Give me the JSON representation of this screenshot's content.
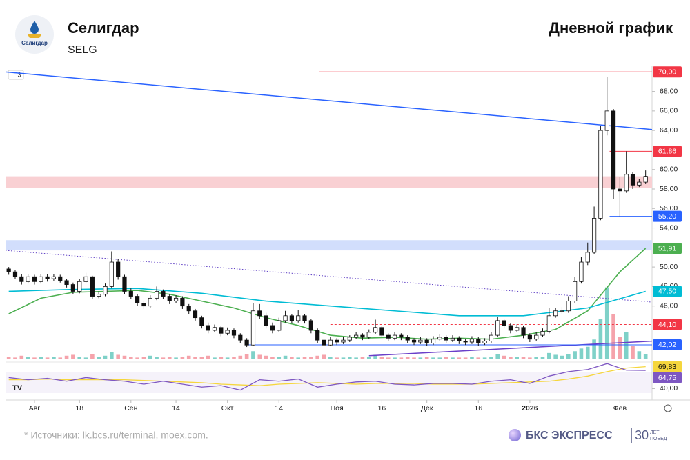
{
  "header": {
    "title": "Селигдар",
    "ticker": "SELG",
    "chart_kind": "Дневной график",
    "logo_text": "Селигдар",
    "badge": "3"
  },
  "chart_data": {
    "type": "candlestick",
    "xlim": [
      -0.5,
      100
    ],
    "ylim": [
      39.4,
      70.8
    ],
    "grid": false,
    "xticks": [
      {
        "value": 4,
        "label": "Авг"
      },
      {
        "value": 11,
        "label": "18"
      },
      {
        "value": 19,
        "label": "Сен"
      },
      {
        "value": 26,
        "label": "14"
      },
      {
        "value": 34,
        "label": "Окт"
      },
      {
        "value": 42,
        "label": "14"
      },
      {
        "value": 51,
        "label": "Ноя"
      },
      {
        "value": 58,
        "label": "16"
      },
      {
        "value": 65,
        "label": "Дек"
      },
      {
        "value": 73,
        "label": "16"
      },
      {
        "value": 81,
        "label": "2026",
        "bold": true
      },
      {
        "value": 95,
        "label": "Фев"
      }
    ],
    "yticks": [
      {
        "value": 68,
        "label": "68,00"
      },
      {
        "value": 66,
        "label": "66,00"
      },
      {
        "value": 64,
        "label": "64,00"
      },
      {
        "value": 60,
        "label": "60,00"
      },
      {
        "value": 58,
        "label": "58,00"
      },
      {
        "value": 56,
        "label": "56,00"
      },
      {
        "value": 54,
        "label": "54,00"
      },
      {
        "value": 50,
        "label": "50,00"
      },
      {
        "value": 48,
        "label": "48,00"
      },
      {
        "value": 46,
        "label": "46,00"
      }
    ],
    "ohlc": [
      [
        49.8,
        50.0,
        49.2,
        49.5
      ],
      [
        49.5,
        49.7,
        48.8,
        49.0
      ],
      [
        49.0,
        49.3,
        48.2,
        48.5
      ],
      [
        48.5,
        49.3,
        48.3,
        49.0
      ],
      [
        49.0,
        49.2,
        48.2,
        48.5
      ],
      [
        48.5,
        49.3,
        48.3,
        49.0
      ],
      [
        49.0,
        49.3,
        48.5,
        48.8
      ],
      [
        48.8,
        49.3,
        48.6,
        49.0
      ],
      [
        49.0,
        49.2,
        48.4,
        48.6
      ],
      [
        48.6,
        48.8,
        47.9,
        48.2
      ],
      [
        48.2,
        48.4,
        47.2,
        47.5
      ],
      [
        47.5,
        48.8,
        47.3,
        48.5
      ],
      [
        48.5,
        49.4,
        48.3,
        49.0
      ],
      [
        49.0,
        49.1,
        46.7,
        47.0
      ],
      [
        47.0,
        47.5,
        46.8,
        47.2
      ],
      [
        47.2,
        48.3,
        47.0,
        48.0
      ],
      [
        48.0,
        51.6,
        47.8,
        50.5
      ],
      [
        50.5,
        50.8,
        48.7,
        49.0
      ],
      [
        49.0,
        49.2,
        47.2,
        47.5
      ],
      [
        47.5,
        47.8,
        46.7,
        47.0
      ],
      [
        47.0,
        47.2,
        46.0,
        46.3
      ],
      [
        46.3,
        46.5,
        45.7,
        46.0
      ],
      [
        46.0,
        47.1,
        45.8,
        46.8
      ],
      [
        46.8,
        48.0,
        46.6,
        47.5
      ],
      [
        47.5,
        47.7,
        46.7,
        47.0
      ],
      [
        47.0,
        47.2,
        46.2,
        46.5
      ],
      [
        46.5,
        47.1,
        46.3,
        46.8
      ],
      [
        46.8,
        47.0,
        45.7,
        46.0
      ],
      [
        46.0,
        46.2,
        45.2,
        45.5
      ],
      [
        45.5,
        45.7,
        44.5,
        44.8
      ],
      [
        44.8,
        45.0,
        43.7,
        44.0
      ],
      [
        44.0,
        44.3,
        43.2,
        43.5
      ],
      [
        43.5,
        44.1,
        43.3,
        43.8
      ],
      [
        43.8,
        44.0,
        42.9,
        43.2
      ],
      [
        43.2,
        43.8,
        43.0,
        43.5
      ],
      [
        43.5,
        43.7,
        42.7,
        43.0
      ],
      [
        43.0,
        43.2,
        42.2,
        42.5
      ],
      [
        42.5,
        42.7,
        41.8,
        42.0
      ],
      [
        42.0,
        46.3,
        41.9,
        45.5
      ],
      [
        45.5,
        46.2,
        44.7,
        45.0
      ],
      [
        45.0,
        45.3,
        43.7,
        44.0
      ],
      [
        44.0,
        44.3,
        43.2,
        43.5
      ],
      [
        43.5,
        44.8,
        43.3,
        44.5
      ],
      [
        44.5,
        45.5,
        44.3,
        45.0
      ],
      [
        45.0,
        45.2,
        44.2,
        44.5
      ],
      [
        44.5,
        45.6,
        44.3,
        45.0
      ],
      [
        45.0,
        45.2,
        44.2,
        44.5
      ],
      [
        44.5,
        44.7,
        43.2,
        43.5
      ],
      [
        43.5,
        43.7,
        42.2,
        42.5
      ],
      [
        42.5,
        42.7,
        41.8,
        42.0
      ],
      [
        42.0,
        42.8,
        41.9,
        42.5
      ],
      [
        42.5,
        42.7,
        42.0,
        42.3
      ],
      [
        42.3,
        42.8,
        42.1,
        42.5
      ],
      [
        42.5,
        43.0,
        42.3,
        42.8
      ],
      [
        42.8,
        43.3,
        42.6,
        43.0
      ],
      [
        43.0,
        43.2,
        42.5,
        42.8
      ],
      [
        42.8,
        43.6,
        42.6,
        43.3
      ],
      [
        43.3,
        44.6,
        43.1,
        43.8
      ],
      [
        43.8,
        44.0,
        42.8,
        43.0
      ],
      [
        43.0,
        43.2,
        42.4,
        42.7
      ],
      [
        42.7,
        43.3,
        42.5,
        43.0
      ],
      [
        43.0,
        43.2,
        42.5,
        42.8
      ],
      [
        42.8,
        43.0,
        42.2,
        42.5
      ],
      [
        42.5,
        42.7,
        42.0,
        42.3
      ],
      [
        42.3,
        42.8,
        42.1,
        42.5
      ],
      [
        42.5,
        42.7,
        41.9,
        42.2
      ],
      [
        42.2,
        42.9,
        42.0,
        42.6
      ],
      [
        42.6,
        43.1,
        42.4,
        42.8
      ],
      [
        42.8,
        43.0,
        42.2,
        42.5
      ],
      [
        42.5,
        43.0,
        42.3,
        42.7
      ],
      [
        42.7,
        42.9,
        42.1,
        42.4
      ],
      [
        42.4,
        42.6,
        42.0,
        42.3
      ],
      [
        42.3,
        42.9,
        42.1,
        42.6
      ],
      [
        42.6,
        42.8,
        41.9,
        42.2
      ],
      [
        42.2,
        42.7,
        42.0,
        42.4
      ],
      [
        42.4,
        43.3,
        42.2,
        43.0
      ],
      [
        43.0,
        44.9,
        42.8,
        44.5
      ],
      [
        44.5,
        44.7,
        43.7,
        44.0
      ],
      [
        44.0,
        44.2,
        43.2,
        43.5
      ],
      [
        43.5,
        44.1,
        43.3,
        43.8
      ],
      [
        43.8,
        44.0,
        42.7,
        43.0
      ],
      [
        43.0,
        43.2,
        42.3,
        42.6
      ],
      [
        42.6,
        43.3,
        42.4,
        43.0
      ],
      [
        43.0,
        43.7,
        42.8,
        43.4
      ],
      [
        43.4,
        45.8,
        43.2,
        45.0
      ],
      [
        45.0,
        45.8,
        44.8,
        45.5
      ],
      [
        45.5,
        45.9,
        45.2,
        45.5
      ],
      [
        45.5,
        47.0,
        45.3,
        46.5
      ],
      [
        46.5,
        49.0,
        46.3,
        48.5
      ],
      [
        48.5,
        51.0,
        48.3,
        50.5
      ],
      [
        50.5,
        52.5,
        50.2,
        51.5
      ],
      [
        51.5,
        56.2,
        51.3,
        55.0
      ],
      [
        55.0,
        64.5,
        54.8,
        64.0
      ],
      [
        64.0,
        69.5,
        63.5,
        66.0
      ],
      [
        66.0,
        66.2,
        57.0,
        58.0
      ],
      [
        58.0,
        59.2,
        55.2,
        57.8
      ],
      [
        57.8,
        61.86,
        57.6,
        59.5
      ],
      [
        59.5,
        59.7,
        58.0,
        58.4
      ],
      [
        58.4,
        59.0,
        58.2,
        58.7
      ],
      [
        58.7,
        59.9,
        58.5,
        59.3
      ]
    ],
    "zones": [
      {
        "range": [
          58.1,
          59.3
        ],
        "color": "#f9d0d3"
      },
      {
        "range": [
          51.7,
          52.75
        ],
        "color": "#d2defc"
      }
    ],
    "lines": [
      {
        "color": "#2962ff",
        "style": "solid",
        "points": [
          [
            -0.5,
            70.0
          ],
          [
            100,
            64.1
          ]
        ]
      },
      {
        "color": "#5e3fc4",
        "style": "dotted",
        "points": [
          [
            -0.5,
            51.7
          ],
          [
            100,
            46.4
          ]
        ]
      },
      {
        "color": "#6a3fc9",
        "style": "solid",
        "points": [
          [
            56,
            40.9
          ],
          [
            100,
            42.4
          ]
        ]
      }
    ],
    "levels": [
      {
        "value": 70.0,
        "label": "70,00",
        "color": "#f23645",
        "from": 48.3,
        "style": "solid"
      },
      {
        "value": 61.86,
        "label": "61,86",
        "color": "#f23645",
        "from": 93.4,
        "style": "solid"
      },
      {
        "value": 55.2,
        "label": "55,20",
        "color": "#2962ff",
        "from": 93.4,
        "style": "solid"
      },
      {
        "value": 44.1,
        "label": "44,10",
        "color": "#f23645",
        "from": 50,
        "style": "dashed"
      },
      {
        "value": 42.02,
        "label": "42,02",
        "color": "#2962ff",
        "from": 36.8,
        "style": "solid"
      }
    ],
    "ma": [
      {
        "color": "#4caf50",
        "value_label": "51,91",
        "x": [
          0,
          5,
          10,
          20,
          25,
          30,
          35,
          40,
          45,
          50,
          55,
          60,
          65,
          70,
          75,
          80,
          85,
          90,
          95,
          99
        ],
        "values": [
          45.2,
          46.8,
          47.4,
          47.6,
          47.2,
          46.5,
          45.8,
          44.8,
          44.0,
          43.0,
          42.7,
          42.8,
          42.6,
          42.7,
          42.6,
          43.0,
          43.6,
          45.5,
          49.5,
          51.91
        ]
      },
      {
        "color": "#00bcd4",
        "value_label": "47,50",
        "x": [
          0,
          10,
          20,
          30,
          40,
          50,
          60,
          70,
          80,
          90,
          99
        ],
        "values": [
          47.5,
          47.7,
          47.8,
          47.3,
          46.5,
          46.0,
          45.5,
          45.0,
          45.0,
          45.8,
          47.5
        ]
      }
    ],
    "volume": {
      "ylim": [
        0,
        82
      ],
      "up_color": "#7fd1c8",
      "down_color": "#f5a3ab",
      "values": [
        3,
        2,
        4,
        3,
        2,
        3,
        2,
        3,
        2,
        4,
        5,
        3,
        2,
        6,
        3,
        4,
        8,
        5,
        4,
        3,
        2,
        3,
        4,
        3,
        2,
        3,
        2,
        3,
        4,
        3,
        3,
        4,
        2,
        3,
        2,
        3,
        4,
        6,
        9,
        5,
        4,
        3,
        3,
        4,
        3,
        2,
        3,
        3,
        4,
        5,
        3,
        2,
        2,
        3,
        2,
        3,
        3,
        5,
        3,
        2,
        2,
        2,
        3,
        2,
        2,
        3,
        2,
        2,
        3,
        2,
        2,
        2,
        3,
        2,
        2,
        3,
        6,
        4,
        3,
        3,
        3,
        2,
        3,
        3,
        7,
        5,
        4,
        6,
        9,
        12,
        14,
        22,
        45,
        80,
        50,
        25,
        30,
        15,
        9,
        6
      ]
    },
    "rsi": {
      "ylim": [
        31,
        77
      ],
      "yticks": [
        {
          "value": 40,
          "label": "40,00"
        }
      ],
      "x": [
        0,
        3,
        6,
        9,
        12,
        15,
        18,
        21,
        24,
        27,
        30,
        33,
        36,
        39,
        42,
        45,
        48,
        51,
        54,
        57,
        60,
        63,
        66,
        69,
        72,
        75,
        78,
        81,
        84,
        87,
        90,
        93,
        96,
        99
      ],
      "values": [
        55,
        52,
        54,
        50,
        55,
        52,
        50,
        46,
        50,
        46,
        42,
        44,
        38,
        52,
        50,
        53,
        42,
        46,
        49,
        50,
        46,
        45,
        47,
        47,
        46,
        50,
        52,
        47,
        57,
        63,
        66,
        74,
        65,
        64.75
      ],
      "value_label": "64,75",
      "color": "#7e57c2",
      "signal": [
        52,
        52,
        53,
        52,
        52,
        52,
        52,
        51,
        50,
        49,
        48,
        46,
        45,
        44,
        46,
        47,
        48,
        47,
        46,
        47,
        47,
        47,
        46,
        46,
        46,
        47,
        48,
        49,
        50,
        53,
        57,
        63,
        68,
        69.83
      ],
      "signal_label": "69,83",
      "signal_color": "#f5d63d"
    }
  },
  "footer": {
    "source": "*  Источники: lk.bcs.ru/terminal, moex.com.",
    "brand": "БКС ЭКСПРЕСС",
    "anniversary": "30",
    "anniversary_lines": [
      "ЛЕТ",
      "ПОБЕД"
    ]
  }
}
